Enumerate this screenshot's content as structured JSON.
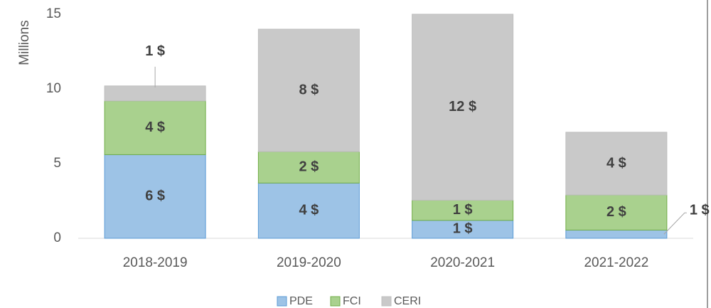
{
  "chart_data": {
    "type": "bar",
    "stacked": true,
    "y_axis_label": "Millions",
    "categories": [
      "2018-2019",
      "2019-2020",
      "2020-2021",
      "2021-2022"
    ],
    "series": [
      {
        "name": "PDE",
        "color": "#9dc3e6",
        "values": [
          5.6,
          3.7,
          1.2,
          0.55
        ],
        "value_labels": [
          "6 $",
          "4 $",
          "1 $",
          "1 $"
        ]
      },
      {
        "name": "FCI",
        "color": "#a9d18e",
        "values": [
          3.6,
          2.1,
          1.35,
          2.35
        ],
        "value_labels": [
          "4 $",
          "2 $",
          "1 $",
          "2 $"
        ]
      },
      {
        "name": "CERI",
        "color": "#c9c9c9",
        "values": [
          1.0,
          8.2,
          12.45,
          4.2
        ],
        "value_labels": [
          "1 $",
          "8 $",
          "12 $",
          "4 $"
        ]
      }
    ],
    "ylim": [
      0,
      15
    ],
    "yticks": [
      0,
      5,
      10,
      15
    ],
    "grid": false,
    "legend": "bottom"
  }
}
